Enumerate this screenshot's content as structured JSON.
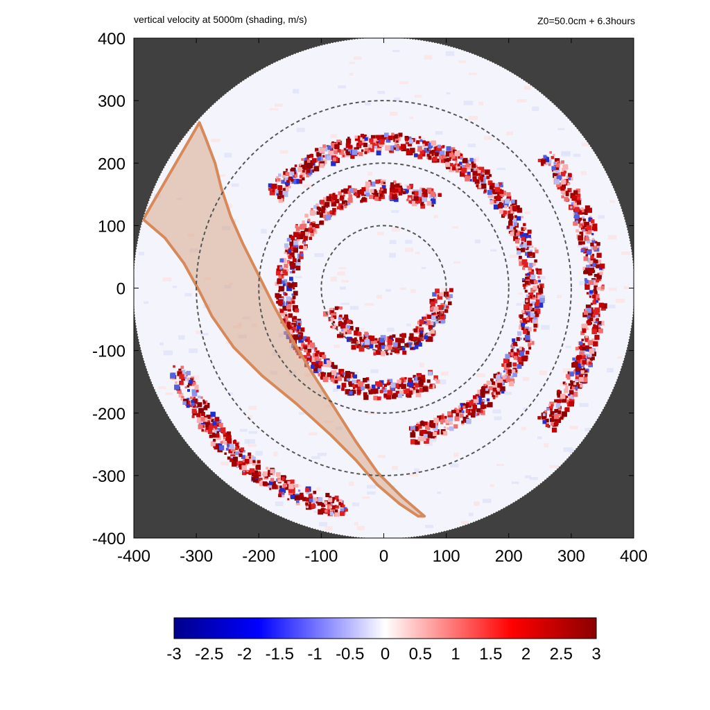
{
  "title": "vertical velocity at 5000m (shading, m/s)",
  "subtitle": "Z0=50.0cm  + 6.3hours",
  "colors": {
    "background_outside": "#404040",
    "positive": "#8b0000",
    "negative": "#00008b",
    "neutral": "#ffffff",
    "track": "#d8895a",
    "track_fill": "#d9a88a"
  },
  "chart_data": {
    "type": "heatmap",
    "title": "vertical velocity at 5000m (shading, m/s)",
    "xlim": [
      -400,
      400
    ],
    "ylim": [
      -400,
      400
    ],
    "x_ticks": [
      -400,
      -300,
      -200,
      -100,
      0,
      100,
      200,
      300,
      400
    ],
    "y_ticks": [
      -400,
      -300,
      -200,
      -100,
      0,
      100,
      200,
      300,
      400
    ],
    "domain_radius": 400,
    "range_rings": [
      100,
      200,
      300
    ],
    "colorbar": {
      "range": [
        -3,
        3
      ],
      "ticks": [
        -3,
        -2.5,
        -2,
        -1.5,
        -1,
        -0.5,
        0,
        0.5,
        1,
        1.5,
        2,
        2.5,
        3
      ]
    },
    "track_polygon": [
      [
        -295,
        265
      ],
      [
        -285,
        240
      ],
      [
        -270,
        200
      ],
      [
        -260,
        160
      ],
      [
        -245,
        115
      ],
      [
        -225,
        70
      ],
      [
        -200,
        20
      ],
      [
        -175,
        -30
      ],
      [
        -145,
        -85
      ],
      [
        -115,
        -135
      ],
      [
        -80,
        -190
      ],
      [
        -45,
        -245
      ],
      [
        -10,
        -295
      ],
      [
        30,
        -335
      ],
      [
        65,
        -365
      ],
      [
        55,
        -365
      ],
      [
        25,
        -345
      ],
      [
        -10,
        -315
      ],
      [
        -45,
        -275
      ],
      [
        -85,
        -235
      ],
      [
        -140,
        -185
      ],
      [
        -195,
        -140
      ],
      [
        -240,
        -95
      ],
      [
        -275,
        -45
      ],
      [
        -295,
        -5
      ],
      [
        -320,
        40
      ],
      [
        -350,
        80
      ],
      [
        -385,
        110
      ]
    ],
    "updraft_bands": [
      {
        "radius": 90,
        "angle_start": 200,
        "angle_end": 360
      },
      {
        "radius": 160,
        "angle_start": 60,
        "angle_end": 300
      },
      {
        "radius": 235,
        "angle_start": -80,
        "angle_end": 140
      },
      {
        "radius": 335,
        "angle_start": -40,
        "angle_end": 40
      },
      {
        "radius": 355,
        "angle_start": 200,
        "angle_end": 260
      }
    ]
  }
}
